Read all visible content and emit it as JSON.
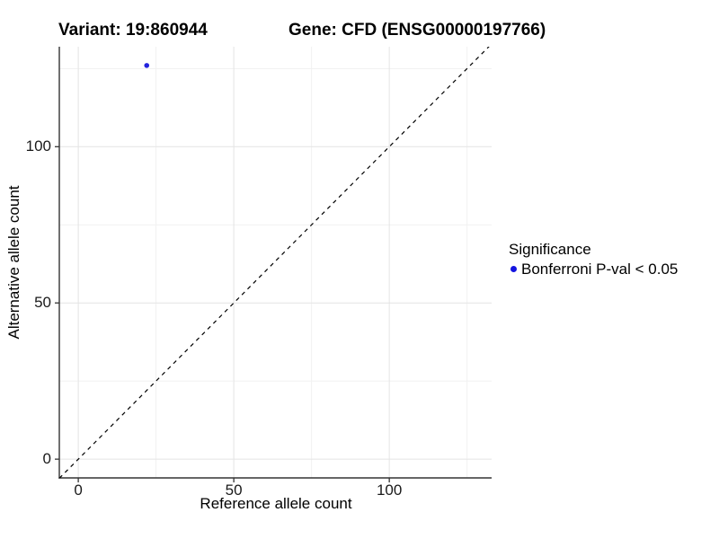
{
  "chart_data": {
    "type": "scatter",
    "variant_title": "Variant: 19:860944",
    "gene_title": "Gene: CFD (ENSG00000197766)",
    "xlabel": "Reference allele count",
    "ylabel": "Alternative allele count",
    "xlim": [
      -6.1,
      132.9
    ],
    "ylim": [
      -6.0,
      132.0
    ],
    "x_major_ticks": [
      0,
      50,
      100
    ],
    "y_major_ticks": [
      0,
      50,
      100
    ],
    "x_minor_ticks": [
      25,
      75,
      125
    ],
    "y_minor_ticks": [
      25,
      75,
      125
    ],
    "grid": true,
    "points": [
      {
        "x": 22,
        "y": 126,
        "series": "Bonferroni P-val < 0.05"
      }
    ],
    "identity_line": {
      "style": "dashed",
      "from": [
        -6.1,
        -6.1
      ],
      "to": [
        135,
        135
      ]
    },
    "legend_position": "right",
    "legend": {
      "title": "Significance",
      "items": [
        {
          "label": "Bonferroni P-val < 0.05",
          "color": "#1414e0"
        }
      ]
    },
    "colors": {
      "point": "#2323dd",
      "grid_major": "#e4e4e4",
      "grid_minor": "#f1f1f1",
      "axis": "#333333",
      "dashed_line": "#000000",
      "background": "#ffffff"
    }
  }
}
